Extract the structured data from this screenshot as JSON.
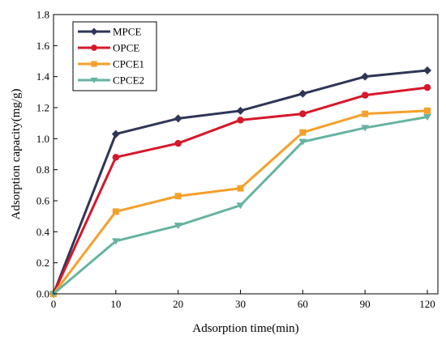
{
  "chart_data": {
    "type": "line",
    "xlabel": "Adsorption time(min)",
    "ylabel": "Adsorption capacity(mg/g)",
    "x_tick_labels": [
      "0",
      "10",
      "20",
      "30",
      "60",
      "90",
      "120"
    ],
    "y_tick_labels": [
      "0.0",
      "0.2",
      "0.4",
      "0.6",
      "0.8",
      "1.0",
      "1.2",
      "1.4",
      "1.6",
      "1.8"
    ],
    "x": [
      0,
      10,
      20,
      30,
      60,
      90,
      120
    ],
    "x_scale": "categorical (evenly spaced ticks)",
    "ylim": [
      0,
      1.8
    ],
    "grid": false,
    "legend_position": "top-left",
    "series": [
      {
        "name": "MPCE",
        "color": "#2f3656",
        "marker": "diamond",
        "values": [
          0.0,
          1.03,
          1.13,
          1.18,
          1.29,
          1.4,
          1.44
        ]
      },
      {
        "name": "OPCE",
        "color": "#d6182b",
        "marker": "circle",
        "values": [
          0.0,
          0.88,
          0.97,
          1.12,
          1.16,
          1.28,
          1.33
        ]
      },
      {
        "name": "CPCE1",
        "color": "#f5a02a",
        "marker": "square",
        "values": [
          0.0,
          0.53,
          0.63,
          0.68,
          1.04,
          1.16,
          1.18
        ]
      },
      {
        "name": "CPCE2",
        "color": "#66b3a0",
        "marker": "triangle-down",
        "values": [
          0.0,
          0.34,
          0.44,
          0.57,
          0.98,
          1.07,
          1.14
        ]
      }
    ]
  }
}
